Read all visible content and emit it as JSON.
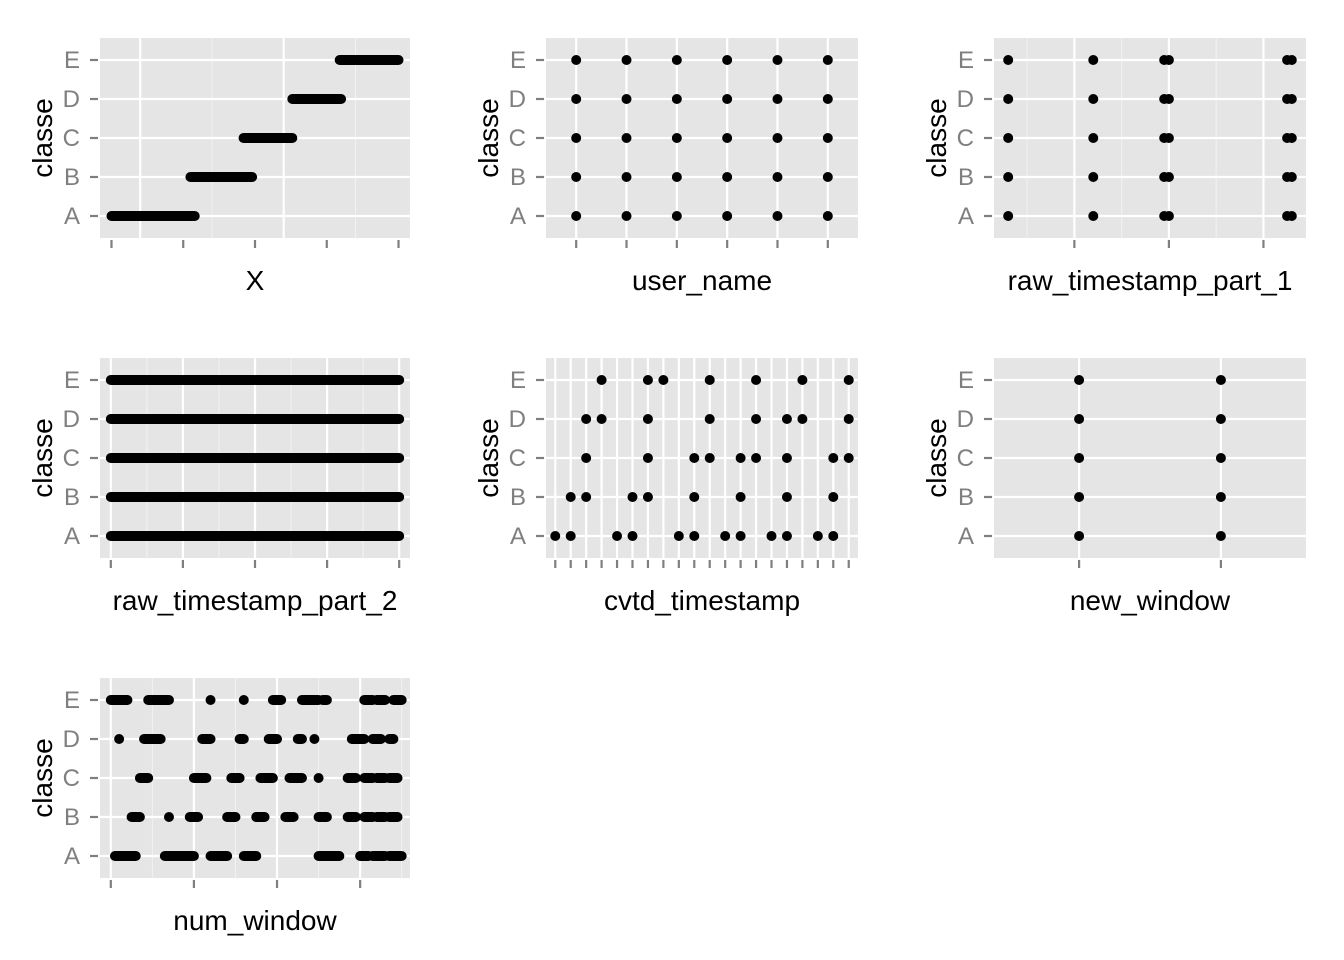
{
  "chart_data": [
    {
      "type": "scatter",
      "xlabel": "X",
      "ylabel": "classe",
      "categories": [
        "A",
        "B",
        "C",
        "D",
        "E"
      ],
      "x_major_grid": [
        1,
        6,
        11
      ],
      "x_minor_grid": [
        3.5,
        8.5
      ],
      "x_ticks": [
        0,
        2.5,
        5,
        7.5,
        10
      ],
      "xlim": [
        -0.4,
        10.4
      ],
      "series": [
        {
          "category": "A",
          "x_range": [
            0,
            2.9
          ]
        },
        {
          "category": "B",
          "x_range": [
            2.75,
            4.9
          ]
        },
        {
          "category": "C",
          "x_range": [
            4.6,
            6.3
          ]
        },
        {
          "category": "D",
          "x_range": [
            6.3,
            8.0
          ]
        },
        {
          "category": "E",
          "x_range": [
            7.95,
            10.0
          ]
        }
      ]
    },
    {
      "type": "scatter",
      "xlabel": "user_name",
      "ylabel": "classe",
      "categories": [
        "A",
        "B",
        "C",
        "D",
        "E"
      ],
      "x_major_grid": [
        1,
        2,
        3,
        4,
        5,
        6
      ],
      "x_minor_grid": [],
      "x_ticks": [
        1,
        2,
        3,
        4,
        5,
        6
      ],
      "xlim": [
        0.4,
        6.6
      ],
      "series": [
        {
          "category": "A",
          "x": [
            1,
            2,
            3,
            4,
            5,
            6
          ]
        },
        {
          "category": "B",
          "x": [
            1,
            2,
            3,
            4,
            5,
            6
          ]
        },
        {
          "category": "C",
          "x": [
            1,
            2,
            3,
            4,
            5,
            6
          ]
        },
        {
          "category": "D",
          "x": [
            1,
            2,
            3,
            4,
            5,
            6
          ]
        },
        {
          "category": "E",
          "x": [
            1,
            2,
            3,
            4,
            5,
            6
          ]
        }
      ]
    },
    {
      "type": "scatter",
      "xlabel": "raw_timestamp_part_1",
      "ylabel": "classe",
      "categories": [
        "A",
        "B",
        "C",
        "D",
        "E"
      ],
      "x_major_grid": [
        0.7,
        1.7,
        2.7
      ],
      "x_minor_grid": [
        0.2,
        1.2,
        2.2
      ],
      "x_ticks": [
        0.7,
        1.7,
        2.7
      ],
      "xlim": [
        -0.15,
        3.15
      ],
      "series": [
        {
          "category": "A",
          "x": [
            0,
            0.9,
            1.65,
            1.7,
            2.95,
            3.0
          ]
        },
        {
          "category": "B",
          "x": [
            0,
            0.9,
            1.65,
            1.7,
            2.95,
            3.0
          ]
        },
        {
          "category": "C",
          "x": [
            0,
            0.9,
            1.65,
            1.7,
            2.95,
            3.0
          ]
        },
        {
          "category": "D",
          "x": [
            0,
            0.9,
            1.65,
            1.7,
            2.95,
            3.0
          ]
        },
        {
          "category": "E",
          "x": [
            0,
            0.9,
            1.65,
            1.7,
            2.95,
            3.0
          ]
        }
      ]
    },
    {
      "type": "scatter",
      "xlabel": "raw_timestamp_part_2",
      "ylabel": "classe",
      "categories": [
        "A",
        "B",
        "C",
        "D",
        "E"
      ],
      "x_major_grid": [
        0,
        2,
        4,
        6,
        8
      ],
      "x_minor_grid": [
        1,
        3,
        5,
        7
      ],
      "x_ticks": [
        0,
        2,
        4,
        6,
        8
      ],
      "xlim": [
        -0.3,
        8.3
      ],
      "series": [
        {
          "category": "A",
          "x_range": [
            0,
            8
          ]
        },
        {
          "category": "B",
          "x_range": [
            0,
            8
          ]
        },
        {
          "category": "C",
          "x_range": [
            0,
            8
          ]
        },
        {
          "category": "D",
          "x_range": [
            0,
            8
          ]
        },
        {
          "category": "E",
          "x_range": [
            0,
            8
          ]
        }
      ]
    },
    {
      "type": "scatter",
      "xlabel": "cvtd_timestamp",
      "ylabel": "classe",
      "categories": [
        "A",
        "B",
        "C",
        "D",
        "E"
      ],
      "x_major_grid": [
        1,
        2,
        3,
        4,
        5,
        6,
        7,
        8,
        9,
        10,
        11,
        12,
        13,
        14,
        15,
        16,
        17,
        18,
        19,
        20
      ],
      "x_minor_grid": [],
      "x_ticks": [
        1,
        2,
        3,
        4,
        5,
        6,
        7,
        8,
        9,
        10,
        11,
        12,
        13,
        14,
        15,
        16,
        17,
        18,
        19,
        20
      ],
      "xlim": [
        0.4,
        20.6
      ],
      "series": [
        {
          "category": "A",
          "x": [
            1,
            2,
            5,
            6,
            9,
            10,
            12,
            13,
            15,
            16,
            18,
            19
          ]
        },
        {
          "category": "B",
          "x": [
            2,
            3,
            6,
            7,
            10,
            13,
            16,
            19
          ]
        },
        {
          "category": "C",
          "x": [
            3,
            7,
            10,
            11,
            13,
            14,
            16,
            19,
            20
          ]
        },
        {
          "category": "D",
          "x": [
            3,
            4,
            7,
            11,
            14,
            16,
            17,
            20
          ]
        },
        {
          "category": "E",
          "x": [
            4,
            7,
            8,
            11,
            14,
            17,
            20
          ]
        }
      ]
    },
    {
      "type": "scatter",
      "xlabel": "new_window",
      "ylabel": "classe",
      "categories": [
        "A",
        "B",
        "C",
        "D",
        "E"
      ],
      "x_major_grid": [
        1,
        2
      ],
      "x_minor_grid": [],
      "x_ticks": [
        1,
        2
      ],
      "xlim": [
        0.4,
        2.6
      ],
      "series": [
        {
          "category": "A",
          "x": [
            1,
            2
          ]
        },
        {
          "category": "B",
          "x": [
            1,
            2
          ]
        },
        {
          "category": "C",
          "x": [
            1,
            2
          ]
        },
        {
          "category": "D",
          "x": [
            1,
            2
          ]
        },
        {
          "category": "E",
          "x": [
            1,
            2
          ]
        }
      ]
    },
    {
      "type": "scatter",
      "xlabel": "num_window",
      "ylabel": "classe",
      "categories": [
        "A",
        "B",
        "C",
        "D",
        "E"
      ],
      "x_major_grid": [
        0,
        1,
        2,
        3
      ],
      "x_minor_grid": [
        0.5,
        1.5,
        2.5,
        3.5
      ],
      "x_ticks": [
        0,
        1,
        2,
        3
      ],
      "xlim": [
        -0.13,
        3.6
      ],
      "series": [
        {
          "category": "A",
          "x_ranges": [
            [
              0.05,
              0.3
            ],
            [
              0.65,
              1.0
            ],
            [
              1.2,
              1.4
            ],
            [
              1.6,
              1.75
            ],
            [
              2.5,
              2.75
            ],
            [
              3.0,
              3.1
            ],
            [
              3.15,
              3.3
            ],
            [
              3.35,
              3.5
            ]
          ]
        },
        {
          "category": "B",
          "x_ranges": [
            [
              0.25,
              0.35
            ],
            [
              0.7,
              0.7
            ],
            [
              0.95,
              1.05
            ],
            [
              1.4,
              1.5
            ],
            [
              1.75,
              1.85
            ],
            [
              2.1,
              2.2
            ],
            [
              2.5,
              2.6
            ],
            [
              2.85,
              2.95
            ],
            [
              3.05,
              3.15
            ],
            [
              3.2,
              3.3
            ],
            [
              3.35,
              3.45
            ]
          ]
        },
        {
          "category": "C",
          "x_ranges": [
            [
              0.35,
              0.45
            ],
            [
              1.0,
              1.15
            ],
            [
              1.45,
              1.55
            ],
            [
              1.8,
              1.95
            ],
            [
              2.15,
              2.3
            ],
            [
              2.5,
              2.5
            ],
            [
              2.85,
              2.95
            ],
            [
              3.05,
              3.15
            ],
            [
              3.2,
              3.3
            ],
            [
              3.35,
              3.45
            ]
          ]
        },
        {
          "category": "D",
          "x_ranges": [
            [
              0.1,
              0.1
            ],
            [
              0.4,
              0.6
            ],
            [
              1.1,
              1.2
            ],
            [
              1.55,
              1.6
            ],
            [
              1.9,
              2.0
            ],
            [
              2.25,
              2.3
            ],
            [
              2.45,
              2.45
            ],
            [
              2.9,
              3.05
            ],
            [
              3.15,
              3.25
            ],
            [
              3.35,
              3.4
            ]
          ]
        },
        {
          "category": "E",
          "x_ranges": [
            [
              0.0,
              0.2
            ],
            [
              0.45,
              0.7
            ],
            [
              1.2,
              1.2
            ],
            [
              1.6,
              1.6
            ],
            [
              1.95,
              2.05
            ],
            [
              2.3,
              2.5
            ],
            [
              2.55,
              2.6
            ],
            [
              3.05,
              3.15
            ],
            [
              3.2,
              3.3
            ],
            [
              3.4,
              3.5
            ]
          ]
        }
      ]
    }
  ]
}
